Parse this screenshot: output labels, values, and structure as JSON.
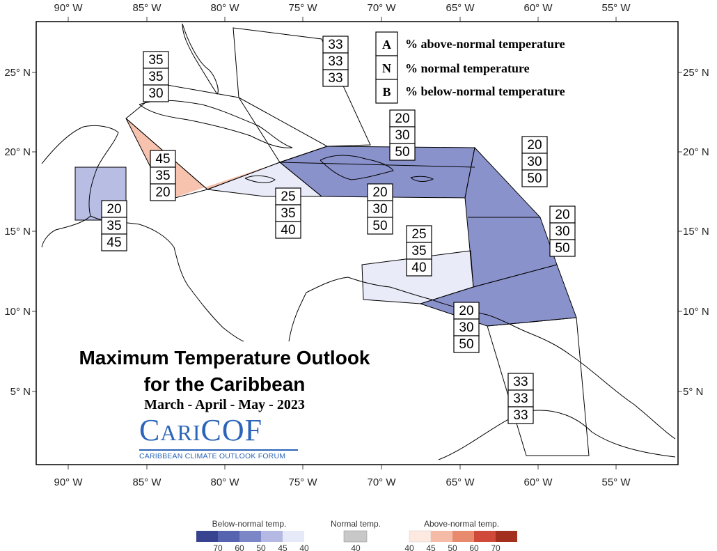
{
  "axes": {
    "lon_labels": [
      "90° W",
      "85° W",
      "80° W",
      "75° W",
      "70° W",
      "65° W",
      "60° W",
      "55° W"
    ],
    "lat_labels": [
      "25° N",
      "20° N",
      "15° N",
      "10° N",
      "5° N"
    ]
  },
  "legend_key": [
    {
      "letter": "A",
      "text": "% above-normal temperature"
    },
    {
      "letter": "N",
      "text": "% normal temperature"
    },
    {
      "letter": "B",
      "text": "% below-normal temperature"
    }
  ],
  "regions": [
    {
      "name": "bahamas",
      "values": [
        "33",
        "33",
        "33"
      ]
    },
    {
      "name": "cuba",
      "values": [
        "35",
        "35",
        "30"
      ]
    },
    {
      "name": "cayman",
      "values": [
        "45",
        "35",
        "20"
      ]
    },
    {
      "name": "belize",
      "values": [
        "20",
        "35",
        "45"
      ]
    },
    {
      "name": "jamaica",
      "values": [
        "25",
        "35",
        "40"
      ]
    },
    {
      "name": "hispaniola-north",
      "values": [
        "20",
        "30",
        "50"
      ]
    },
    {
      "name": "hispaniola-south",
      "values": [
        "20",
        "30",
        "50"
      ]
    },
    {
      "name": "leewards",
      "values": [
        "20",
        "30",
        "50"
      ]
    },
    {
      "name": "windwards",
      "values": [
        "20",
        "30",
        "50"
      ]
    },
    {
      "name": "abc-islands",
      "values": [
        "25",
        "35",
        "40"
      ]
    },
    {
      "name": "trinidad",
      "values": [
        "20",
        "30",
        "50"
      ]
    },
    {
      "name": "guianas",
      "values": [
        "33",
        "33",
        "33"
      ]
    }
  ],
  "colors": {
    "below_50": "#8a92cc",
    "below_40": "#e9ecf8",
    "above_45": "#f7c2ae",
    "belize": "#b8bde4",
    "normal": "#c8c8c8",
    "below_scale": [
      "#38438f",
      "#5663ae",
      "#7a86c6",
      "#b3b9e2",
      "#e6e9f7"
    ],
    "above_scale": [
      "#fde9e0",
      "#f6bba7",
      "#e88a6e",
      "#cf4a38",
      "#a3301f"
    ]
  },
  "title": {
    "line1": "Maximum Temperature Outlook",
    "line2": "for the Caribbean",
    "line3": "March - April - May - 2023"
  },
  "logo": {
    "word_part1": "C",
    "word_part2": "ARI",
    "word_part3": "COF",
    "subtitle": "CARIBBEAN CLIMATE OUTLOOK FORUM"
  },
  "colorbar": {
    "below_title": "Below-normal temp.",
    "normal_title": "Normal temp.",
    "above_title": "Above-normal temp.",
    "below_ticks": [
      "70",
      "60",
      "50",
      "45",
      "40"
    ],
    "normal_ticks": [
      "40"
    ],
    "above_ticks": [
      "40",
      "45",
      "50",
      "60",
      "70"
    ]
  }
}
